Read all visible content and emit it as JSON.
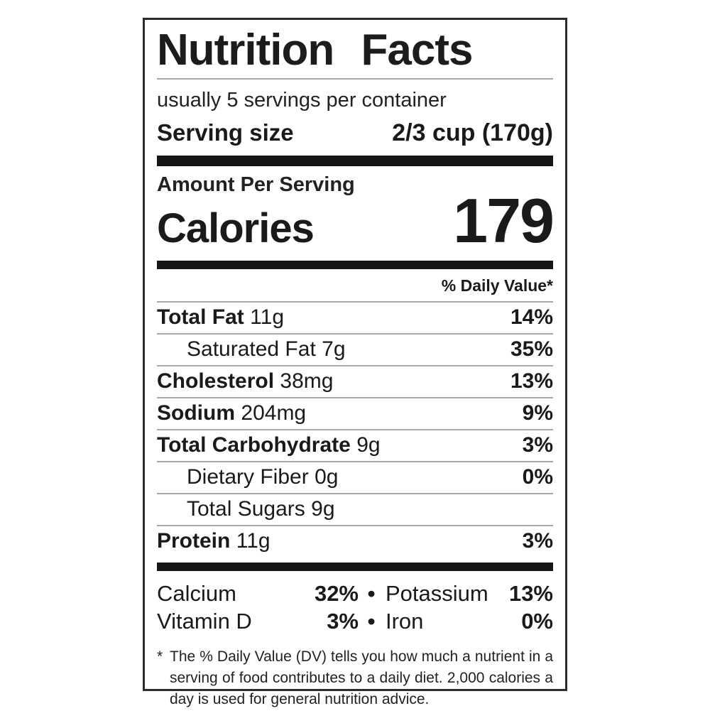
{
  "label": {
    "title": "Nutrition Facts",
    "servings_per_container": "usually 5 servings per container",
    "serving_size_label": "Serving size",
    "serving_size_value": "2/3 cup (170g)",
    "amount_per_serving": "Amount Per Serving",
    "calories_label": "Calories",
    "calories_value": "179",
    "daily_value_header": "% Daily Value*",
    "nutrients": [
      {
        "name": "Total Fat",
        "amount": "11g",
        "dv": "14%"
      },
      {
        "name": "Saturated Fat",
        "amount": "7g",
        "dv": "35%"
      },
      {
        "name": "Cholesterol",
        "amount": "38mg",
        "dv": "13%"
      },
      {
        "name": "Sodium",
        "amount": "204mg",
        "dv": "9%"
      },
      {
        "name": "Total Carbohydrate",
        "amount": "9g",
        "dv": "3%"
      },
      {
        "name": "Dietary Fiber",
        "amount": "0g",
        "dv": "0%"
      },
      {
        "name": "Total Sugars",
        "amount": "9g",
        "dv": ""
      },
      {
        "name": "Protein",
        "amount": "11g",
        "dv": "3%"
      }
    ],
    "bullet": "•",
    "micronutrients": [
      {
        "left_name": "Calcium",
        "left_dv": "32%",
        "right_name": "Potassium",
        "right_dv": "13%"
      },
      {
        "left_name": "Vitamin D",
        "left_dv": "3%",
        "right_name": "Iron",
        "right_dv": "0%"
      }
    ],
    "footnote_marker": "*",
    "footnote": "The % Daily Value (DV) tells you how much a nutrient in a serving of food contributes to a daily diet. 2,000 calories a day is used for general nutrition advice."
  }
}
